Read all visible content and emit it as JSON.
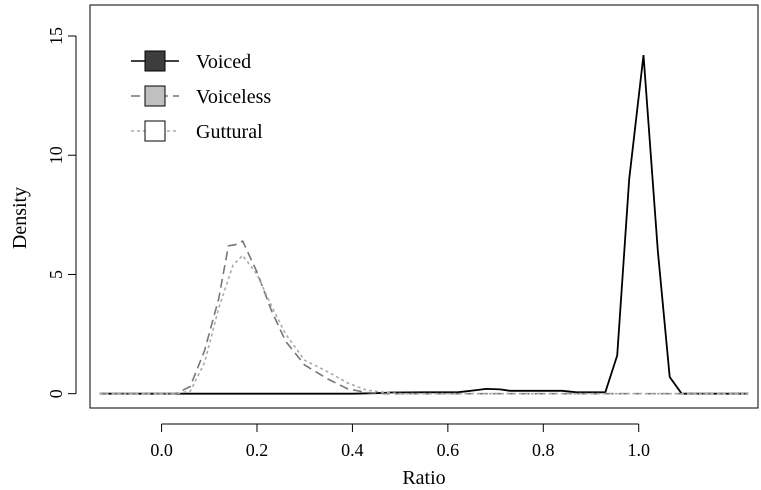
{
  "chart_data": {
    "type": "line",
    "title": "",
    "xlabel": "Ratio",
    "ylabel": "Density",
    "xlim": [
      -0.15,
      1.25
    ],
    "ylim": [
      -0.6,
      16.3
    ],
    "x_ticks": [
      "0.0",
      "0.2",
      "0.4",
      "0.6",
      "0.8",
      "1.0"
    ],
    "y_ticks": [
      "0",
      "5",
      "10",
      "15"
    ],
    "grid": false,
    "legend_position": "top-left",
    "series": [
      {
        "name": "Voiced",
        "line_style": "solid",
        "line_color": "#000000",
        "fill_color": "#3d3d3d",
        "points": [
          [
            -0.13,
            0
          ],
          [
            0.0,
            0
          ],
          [
            0.2,
            0
          ],
          [
            0.4,
            0
          ],
          [
            0.45,
            0.02
          ],
          [
            0.48,
            0.05
          ],
          [
            0.55,
            0.06
          ],
          [
            0.62,
            0.06
          ],
          [
            0.66,
            0.15
          ],
          [
            0.68,
            0.2
          ],
          [
            0.71,
            0.18
          ],
          [
            0.73,
            0.12
          ],
          [
            0.84,
            0.12
          ],
          [
            0.87,
            0.06
          ],
          [
            0.93,
            0.06
          ],
          [
            0.955,
            1.6
          ],
          [
            0.98,
            9.0
          ],
          [
            1.01,
            14.2
          ],
          [
            1.04,
            6.0
          ],
          [
            1.065,
            0.7
          ],
          [
            1.09,
            0
          ],
          [
            1.23,
            0
          ]
        ]
      },
      {
        "name": "Voiceless",
        "line_style": "dashed",
        "line_color": "#777777",
        "fill_color": "#c0c0c0",
        "points": [
          [
            -0.13,
            0
          ],
          [
            0.03,
            0
          ],
          [
            0.06,
            0.3
          ],
          [
            0.09,
            1.8
          ],
          [
            0.12,
            4.0
          ],
          [
            0.14,
            6.2
          ],
          [
            0.155,
            6.25
          ],
          [
            0.17,
            6.4
          ],
          [
            0.2,
            5.1
          ],
          [
            0.23,
            3.5
          ],
          [
            0.26,
            2.2
          ],
          [
            0.3,
            1.2
          ],
          [
            0.35,
            0.6
          ],
          [
            0.39,
            0.2
          ],
          [
            0.43,
            0.05
          ],
          [
            0.47,
            0
          ],
          [
            1.23,
            0
          ]
        ]
      },
      {
        "name": "Guttural",
        "line_style": "dotted",
        "line_color": "#aaaaaa",
        "fill_color": "#ffffff",
        "points": [
          [
            -0.13,
            0
          ],
          [
            0.03,
            0
          ],
          [
            0.06,
            0.1
          ],
          [
            0.09,
            1.3
          ],
          [
            0.12,
            3.6
          ],
          [
            0.15,
            5.4
          ],
          [
            0.17,
            5.8
          ],
          [
            0.2,
            5.0
          ],
          [
            0.23,
            3.7
          ],
          [
            0.26,
            2.5
          ],
          [
            0.3,
            1.4
          ],
          [
            0.35,
            0.9
          ],
          [
            0.39,
            0.45
          ],
          [
            0.43,
            0.15
          ],
          [
            0.47,
            0.05
          ],
          [
            0.5,
            0
          ],
          [
            1.23,
            0
          ]
        ]
      }
    ]
  }
}
